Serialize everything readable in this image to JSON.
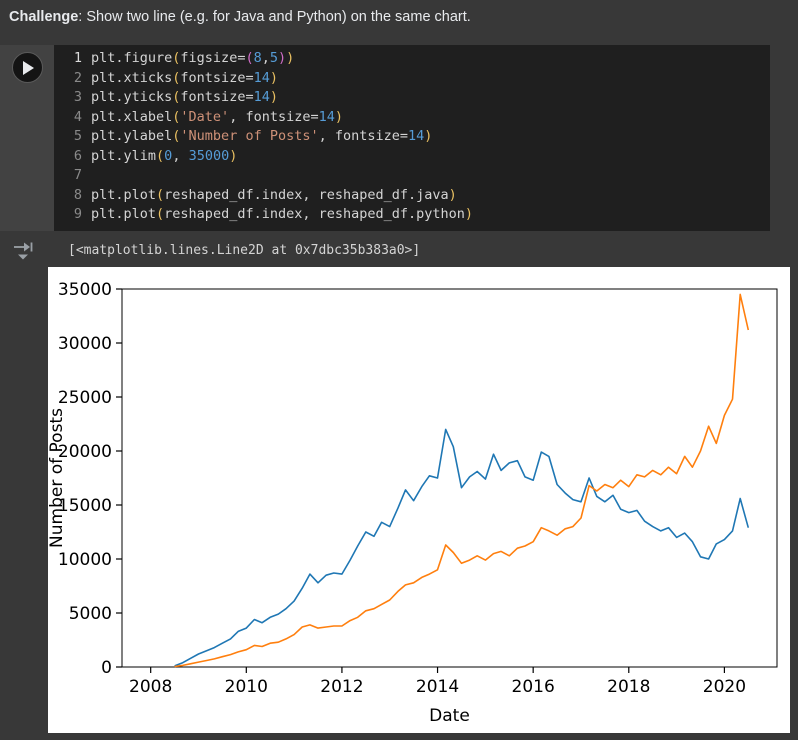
{
  "markdown": {
    "bold": "Challenge",
    "rest": ": Show two line (e.g. for Java and Python) on the same chart."
  },
  "code_cell": {
    "lines": [
      {
        "num": "1",
        "active": true,
        "tokens": [
          [
            "p",
            "plt.figure"
          ],
          [
            "g",
            "("
          ],
          [
            "p",
            "figsize="
          ],
          [
            "m",
            "("
          ],
          [
            "n",
            "8"
          ],
          [
            "p",
            ","
          ],
          [
            "n",
            "5"
          ],
          [
            "m",
            ")"
          ],
          [
            "g",
            ")"
          ]
        ]
      },
      {
        "num": "2",
        "tokens": [
          [
            "p",
            "plt.xticks"
          ],
          [
            "g",
            "("
          ],
          [
            "p",
            "fontsize="
          ],
          [
            "n",
            "14"
          ],
          [
            "g",
            ")"
          ]
        ]
      },
      {
        "num": "3",
        "tokens": [
          [
            "p",
            "plt.yticks"
          ],
          [
            "g",
            "("
          ],
          [
            "p",
            "fontsize="
          ],
          [
            "n",
            "14"
          ],
          [
            "g",
            ")"
          ]
        ]
      },
      {
        "num": "4",
        "tokens": [
          [
            "p",
            "plt.xlabel"
          ],
          [
            "g",
            "("
          ],
          [
            "s",
            "'Date'"
          ],
          [
            "p",
            ", fontsize="
          ],
          [
            "n",
            "14"
          ],
          [
            "g",
            ")"
          ]
        ]
      },
      {
        "num": "5",
        "tokens": [
          [
            "p",
            "plt.ylabel"
          ],
          [
            "g",
            "("
          ],
          [
            "s",
            "'Number of Posts'"
          ],
          [
            "p",
            ", fontsize="
          ],
          [
            "n",
            "14"
          ],
          [
            "g",
            ")"
          ]
        ]
      },
      {
        "num": "6",
        "tokens": [
          [
            "p",
            "plt.ylim"
          ],
          [
            "g",
            "("
          ],
          [
            "n",
            "0"
          ],
          [
            "p",
            ", "
          ],
          [
            "n",
            "35000"
          ],
          [
            "g",
            ")"
          ]
        ]
      },
      {
        "num": "7",
        "tokens": []
      },
      {
        "num": "8",
        "tokens": [
          [
            "p",
            "plt.plot"
          ],
          [
            "g",
            "("
          ],
          [
            "p",
            "reshaped_df.index, reshaped_df.java"
          ],
          [
            "g",
            ")"
          ]
        ]
      },
      {
        "num": "9",
        "tokens": [
          [
            "p",
            "plt.plot"
          ],
          [
            "g",
            "("
          ],
          [
            "p",
            "reshaped_df.index, reshaped_df.python"
          ],
          [
            "g",
            ")"
          ]
        ]
      }
    ]
  },
  "output": {
    "text": "[<matplotlib.lines.Line2D at 0x7dbc35b383a0>]"
  },
  "colors": {
    "java_line": "#1f77b4",
    "python_line": "#ff7f0e",
    "string": "#ce9178",
    "number": "#569cd6",
    "page_bg": "#383838",
    "editor_bg": "#1f1f1f"
  },
  "chart_data": {
    "type": "line",
    "title": "",
    "xlabel": "Date",
    "ylabel": "Number of Posts",
    "xlim": [
      2007.4,
      2021.1
    ],
    "ylim": [
      0,
      35000
    ],
    "xticks": [
      2008,
      2010,
      2012,
      2014,
      2016,
      2018,
      2020
    ],
    "yticks": [
      0,
      5000,
      10000,
      15000,
      20000,
      25000,
      30000,
      35000
    ],
    "grid": false,
    "legend": "none",
    "x": [
      2008.5,
      2008.67,
      2008.83,
      2009,
      2009.17,
      2009.33,
      2009.5,
      2009.67,
      2009.83,
      2010,
      2010.17,
      2010.33,
      2010.5,
      2010.67,
      2010.83,
      2011,
      2011.17,
      2011.33,
      2011.5,
      2011.67,
      2011.83,
      2012,
      2012.17,
      2012.33,
      2012.5,
      2012.67,
      2012.83,
      2013,
      2013.17,
      2013.33,
      2013.5,
      2013.67,
      2013.83,
      2014,
      2014.17,
      2014.33,
      2014.5,
      2014.67,
      2014.83,
      2015,
      2015.17,
      2015.33,
      2015.5,
      2015.67,
      2015.83,
      2016,
      2016.17,
      2016.33,
      2016.5,
      2016.67,
      2016.83,
      2017,
      2017.17,
      2017.33,
      2017.5,
      2017.67,
      2017.83,
      2018,
      2018.17,
      2018.33,
      2018.5,
      2018.67,
      2018.83,
      2019,
      2019.17,
      2019.33,
      2019.5,
      2019.67,
      2019.83,
      2020,
      2020.17,
      2020.33,
      2020.5
    ],
    "series": [
      {
        "name": "java",
        "color": "#1f77b4",
        "values": [
          100,
          400,
          800,
          1200,
          1500,
          1800,
          2200,
          2600,
          3300,
          3600,
          4400,
          4100,
          4600,
          4900,
          5400,
          6100,
          7300,
          8600,
          7800,
          8500,
          8700,
          8600,
          9900,
          11200,
          12500,
          12100,
          13400,
          13000,
          14700,
          16400,
          15400,
          16700,
          17700,
          17500,
          22000,
          20400,
          16600,
          17600,
          18100,
          17400,
          19700,
          18200,
          18900,
          19100,
          17600,
          17300,
          19900,
          19500,
          16900,
          16100,
          15500,
          15300,
          17500,
          15800,
          15300,
          15900,
          14600,
          14300,
          14500,
          13500,
          13000,
          12600,
          12900,
          12000,
          12400,
          11600,
          10200,
          10000,
          11400,
          11800,
          12600,
          15600,
          12900
        ]
      },
      {
        "name": "python",
        "color": "#ff7f0e",
        "values": [
          50,
          150,
          300,
          450,
          600,
          750,
          950,
          1150,
          1400,
          1600,
          2000,
          1900,
          2200,
          2300,
          2600,
          3000,
          3700,
          3900,
          3600,
          3700,
          3800,
          3800,
          4300,
          4600,
          5200,
          5400,
          5800,
          6200,
          7000,
          7600,
          7800,
          8300,
          8600,
          9000,
          11300,
          10600,
          9600,
          9900,
          10300,
          9900,
          10500,
          10700,
          10300,
          11000,
          11200,
          11600,
          12900,
          12600,
          12200,
          12800,
          13000,
          13800,
          16800,
          16300,
          16900,
          16600,
          17300,
          16700,
          17800,
          17600,
          18200,
          17800,
          18500,
          17900,
          19500,
          18500,
          20000,
          22300,
          20700,
          23300,
          24800,
          34500,
          31200
        ]
      }
    ]
  }
}
